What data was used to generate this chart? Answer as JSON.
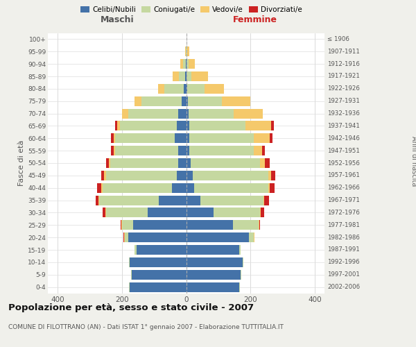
{
  "age_groups": [
    "0-4",
    "5-9",
    "10-14",
    "15-19",
    "20-24",
    "25-29",
    "30-34",
    "35-39",
    "40-44",
    "45-49",
    "50-54",
    "55-59",
    "60-64",
    "65-69",
    "70-74",
    "75-79",
    "80-84",
    "85-89",
    "90-94",
    "95-99",
    "100+"
  ],
  "birth_years": [
    "2002-2006",
    "1997-2001",
    "1992-1996",
    "1987-1991",
    "1982-1986",
    "1977-1981",
    "1972-1976",
    "1967-1971",
    "1962-1966",
    "1957-1961",
    "1952-1956",
    "1947-1951",
    "1942-1946",
    "1937-1941",
    "1932-1936",
    "1927-1931",
    "1922-1926",
    "1917-1921",
    "1912-1916",
    "1907-1911",
    "≤ 1906"
  ],
  "colors": {
    "celibe": "#4472A8",
    "coniugato": "#c5d8a0",
    "vedovo": "#f5c96b",
    "divorziato": "#cc2222"
  },
  "males": {
    "celibe": [
      175,
      170,
      175,
      155,
      180,
      165,
      120,
      85,
      45,
      30,
      25,
      25,
      35,
      30,
      25,
      15,
      8,
      3,
      2,
      0,
      0
    ],
    "coniugato": [
      2,
      2,
      2,
      5,
      10,
      35,
      130,
      185,
      215,
      220,
      210,
      195,
      185,
      175,
      155,
      125,
      60,
      20,
      8,
      2,
      0
    ],
    "vedovo": [
      0,
      0,
      0,
      0,
      2,
      2,
      2,
      2,
      5,
      5,
      5,
      5,
      5,
      10,
      20,
      20,
      20,
      20,
      8,
      2,
      0
    ],
    "divorziato": [
      0,
      0,
      0,
      0,
      2,
      2,
      8,
      10,
      12,
      10,
      8,
      8,
      8,
      5,
      0,
      0,
      0,
      0,
      0,
      0,
      0
    ]
  },
  "females": {
    "nubile": [
      165,
      170,
      175,
      165,
      195,
      145,
      85,
      45,
      25,
      20,
      15,
      10,
      10,
      10,
      8,
      5,
      3,
      2,
      2,
      0,
      0
    ],
    "coniugata": [
      2,
      2,
      2,
      5,
      15,
      80,
      145,
      195,
      230,
      235,
      215,
      200,
      200,
      175,
      140,
      105,
      55,
      15,
      5,
      2,
      0
    ],
    "vedova": [
      0,
      0,
      0,
      0,
      2,
      2,
      2,
      2,
      5,
      8,
      15,
      25,
      50,
      80,
      90,
      90,
      60,
      50,
      20,
      8,
      2
    ],
    "divorziata": [
      0,
      0,
      0,
      0,
      0,
      2,
      10,
      15,
      15,
      15,
      15,
      10,
      8,
      8,
      0,
      0,
      0,
      0,
      0,
      0,
      0
    ]
  },
  "title": "Popolazione per età, sesso e stato civile - 2007",
  "subtitle": "COMUNE DI FILOTTRANO (AN) - Dati ISTAT 1° gennaio 2007 - Elaborazione TUTTITALIA.IT",
  "xlim": 430,
  "bg_color": "#f0f0eb",
  "plot_bg": "#ffffff"
}
